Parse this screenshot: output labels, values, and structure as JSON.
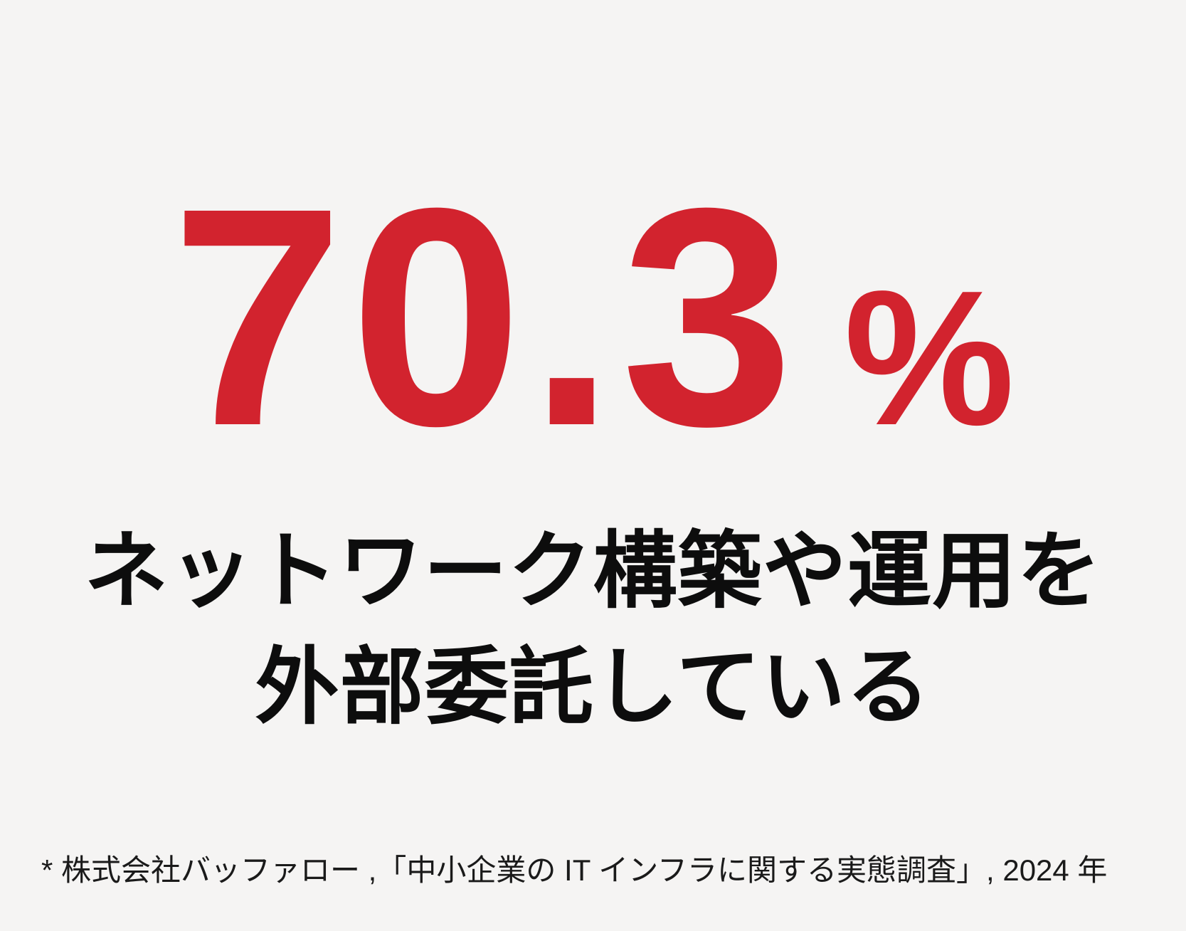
{
  "page": {
    "background_color": "#f5f4f3"
  },
  "stat": {
    "value": "70.3",
    "unit": "%",
    "color": "#d2232e"
  },
  "headline": {
    "line1": "ネットワーク構築や運用を",
    "line2": "外部委託している",
    "color": "#0d0d0d"
  },
  "footnote": {
    "text": "* 株式会社バッファロー ,「中小企業の IT インフラに関する実態調査」, 2024 年",
    "color": "#1a1a1a"
  }
}
